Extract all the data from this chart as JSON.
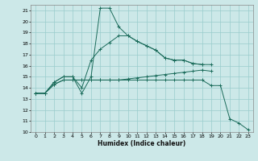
{
  "title": "",
  "xlabel": "Humidex (Indice chaleur)",
  "bg_color": "#cce8e8",
  "line_color": "#1a6b5a",
  "grid_color": "#99cccc",
  "xlim": [
    -0.5,
    23.5
  ],
  "ylim": [
    10,
    21.5
  ],
  "xticks": [
    0,
    1,
    2,
    3,
    4,
    5,
    6,
    7,
    8,
    9,
    10,
    11,
    12,
    13,
    14,
    15,
    16,
    17,
    18,
    19,
    20,
    21,
    22,
    23
  ],
  "yticks": [
    10,
    11,
    12,
    13,
    14,
    15,
    16,
    17,
    18,
    19,
    20,
    21
  ],
  "lines": [
    {
      "x": [
        0,
        1,
        2,
        3,
        4,
        5,
        6,
        7,
        8,
        9,
        10,
        11,
        12,
        13,
        14,
        15,
        16,
        17,
        18,
        19
      ],
      "y": [
        13.5,
        13.5,
        14.5,
        15.0,
        15.0,
        13.5,
        15.0,
        21.2,
        21.2,
        19.5,
        18.7,
        18.2,
        17.8,
        17.4,
        16.7,
        16.5,
        16.5,
        16.2,
        16.1,
        16.1
      ]
    },
    {
      "x": [
        0,
        1,
        2,
        3,
        4,
        5,
        6,
        7,
        8,
        9,
        10,
        11,
        12,
        13,
        14,
        15,
        16,
        17,
        18
      ],
      "y": [
        13.5,
        13.5,
        14.5,
        15.0,
        15.0,
        14.0,
        16.5,
        17.5,
        18.1,
        18.7,
        18.7,
        18.2,
        17.8,
        17.4,
        16.7,
        16.5,
        16.5,
        16.2,
        16.1
      ]
    },
    {
      "x": [
        0,
        1,
        2,
        3,
        4,
        5,
        6,
        7,
        8,
        9,
        10,
        11,
        12,
        13,
        14,
        15,
        16,
        17,
        18,
        19
      ],
      "y": [
        13.5,
        13.5,
        14.3,
        14.7,
        14.7,
        14.7,
        14.7,
        14.7,
        14.7,
        14.7,
        14.8,
        14.9,
        15.0,
        15.1,
        15.2,
        15.3,
        15.4,
        15.5,
        15.6,
        15.5
      ]
    },
    {
      "x": [
        0,
        1,
        2,
        3,
        4,
        5,
        6,
        7,
        8,
        9,
        10,
        11,
        12,
        13,
        14,
        15,
        16,
        17,
        18,
        19,
        20,
        21,
        22,
        23
      ],
      "y": [
        13.5,
        13.5,
        14.3,
        14.7,
        14.7,
        14.7,
        14.7,
        14.7,
        14.7,
        14.7,
        14.7,
        14.7,
        14.7,
        14.7,
        14.7,
        14.7,
        14.7,
        14.7,
        14.7,
        14.2,
        14.2,
        11.2,
        10.8,
        10.2
      ]
    }
  ]
}
